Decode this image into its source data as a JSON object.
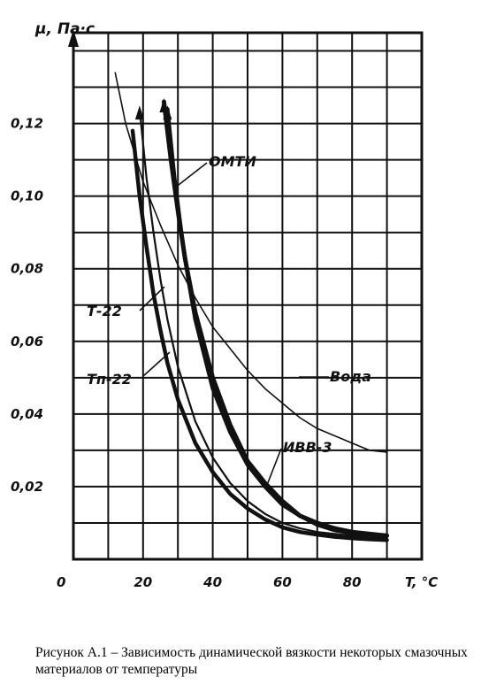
{
  "chart_data": {
    "type": "line",
    "ylabel": "μ, Па·с",
    "xlabel": "T, °C",
    "origin_label": "0",
    "x_ticks": [
      20,
      40,
      60,
      80
    ],
    "x_tick_labels": [
      "20",
      "40",
      "60",
      "80"
    ],
    "y_ticks": [
      0.02,
      0.04,
      0.06,
      0.08,
      0.1,
      0.12
    ],
    "y_tick_labels": [
      "0,02",
      "0,04",
      "0,06",
      "0,08",
      "0,10",
      "0,12"
    ],
    "xlim": [
      0,
      100
    ],
    "ylim": [
      0,
      0.145
    ],
    "grid": true,
    "series": [
      {
        "name": "Вода",
        "x": [
          12,
          15,
          20,
          25,
          30,
          35,
          40,
          45,
          50,
          55,
          60,
          65,
          70,
          75,
          80,
          85,
          90
        ],
        "y": [
          0.134,
          0.12,
          0.104,
          0.092,
          0.081,
          0.072,
          0.064,
          0.058,
          0.052,
          0.047,
          0.043,
          0.039,
          0.036,
          0.034,
          0.032,
          0.03,
          0.0295
        ]
      },
      {
        "name": "ОМТИ",
        "x": [
          26,
          28,
          30,
          32,
          35,
          40,
          45,
          50,
          55,
          60,
          65,
          70,
          75,
          80,
          85,
          90
        ],
        "y": [
          0.126,
          0.11,
          0.096,
          0.083,
          0.068,
          0.05,
          0.037,
          0.027,
          0.021,
          0.016,
          0.012,
          0.01,
          0.0085,
          0.0075,
          0.007,
          0.0065
        ]
      },
      {
        "name": "ИВВ-3",
        "x": [
          27,
          29,
          31,
          33,
          35,
          40,
          45,
          50,
          55,
          60,
          65,
          70,
          75,
          80,
          85,
          90
        ],
        "y": [
          0.124,
          0.105,
          0.09,
          0.077,
          0.066,
          0.047,
          0.035,
          0.026,
          0.02,
          0.015,
          0.012,
          0.0095,
          0.008,
          0.0072,
          0.0068,
          0.0065
        ]
      },
      {
        "name": "Т-22",
        "x": [
          19,
          21,
          23,
          25,
          27,
          30,
          35,
          40,
          45,
          50,
          55,
          60,
          65,
          70,
          75,
          80,
          85,
          90
        ],
        "y": [
          0.124,
          0.105,
          0.09,
          0.077,
          0.066,
          0.053,
          0.038,
          0.028,
          0.021,
          0.016,
          0.0125,
          0.01,
          0.0085,
          0.0075,
          0.007,
          0.0065,
          0.006,
          0.0058
        ]
      },
      {
        "name": "Тп-22",
        "x": [
          17,
          19,
          21,
          23,
          25,
          27,
          30,
          35,
          40,
          45,
          50,
          55,
          60,
          65,
          70,
          75,
          80,
          85,
          90
        ],
        "y": [
          0.118,
          0.1,
          0.086,
          0.073,
          0.063,
          0.054,
          0.044,
          0.032,
          0.024,
          0.018,
          0.014,
          0.011,
          0.0088,
          0.0075,
          0.0068,
          0.0062,
          0.0058,
          0.0055,
          0.0053
        ]
      }
    ],
    "series_labels": [
      "ОМТИ",
      "Т-22",
      "Тп-22",
      "Вода",
      "ИВВ-3"
    ]
  },
  "caption": "Рисунок А.1 – Зависимость динамической вязкости некоторых смазочных материалов от температуры"
}
